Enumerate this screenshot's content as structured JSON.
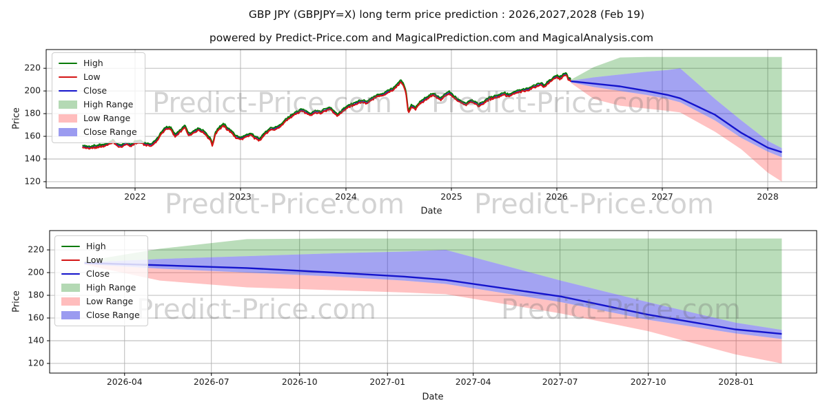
{
  "figure": {
    "title": "GBP JPY (GBPJPY=X) long term price prediction : 2026,2027,2028 (Feb 19)",
    "subtitle": "powered by Predict-Price.com and MagicalPrediction.com and MagicalAnalysis.com",
    "watermark_text": "Predict-Price.com"
  },
  "axis_labels": {
    "x": "Date",
    "y": "Price"
  },
  "colors": {
    "high": "#077a07",
    "low": "#d41414",
    "close": "#1414cc",
    "high_range_fill": "rgba(0,128,0,0.27)",
    "low_range_fill": "rgba(255,30,30,0.27)",
    "close_range_fill": "rgba(45,45,225,0.44)",
    "high_range_swatch": "#b4d9b4",
    "low_range_swatch": "#ffbdbd",
    "close_range_swatch": "#9b9bf0",
    "grid": "#b0b0b0",
    "spine": "#000000",
    "text": "#1a1a1a",
    "watermark_fill": "rgba(110,110,110,0.30)"
  },
  "legend": {
    "items": [
      {
        "label": "High",
        "type": "line",
        "color": "high"
      },
      {
        "label": "Low",
        "type": "line",
        "color": "low"
      },
      {
        "label": "Close",
        "type": "line",
        "color": "close"
      },
      {
        "label": "High Range",
        "type": "patch",
        "color": "high_range_swatch"
      },
      {
        "label": "Low Range",
        "type": "patch",
        "color": "low_range_swatch"
      },
      {
        "label": "Close Range",
        "type": "patch",
        "color": "close_range_swatch"
      }
    ]
  },
  "chart_data": [
    {
      "type": "line",
      "name": "price-history-and-forecast",
      "xlabel": "Date",
      "ylabel": "Price",
      "grid": true,
      "legend_position": "upper left",
      "xlim": [
        2021.157,
        2028.464
      ],
      "ylim": [
        114.5,
        236.5
      ],
      "xticks": [
        {
          "v": 2022,
          "label": "2022"
        },
        {
          "v": 2023,
          "label": "2023"
        },
        {
          "v": 2024,
          "label": "2024"
        },
        {
          "v": 2025,
          "label": "2025"
        },
        {
          "v": 2026,
          "label": "2026"
        },
        {
          "v": 2027,
          "label": "2027"
        },
        {
          "v": 2028,
          "label": "2028"
        }
      ],
      "yticks": [
        {
          "v": 120,
          "label": "120"
        },
        {
          "v": 140,
          "label": "140"
        },
        {
          "v": 160,
          "label": "160"
        },
        {
          "v": 180,
          "label": "180"
        },
        {
          "v": 200,
          "label": "200"
        },
        {
          "v": 220,
          "label": "220"
        }
      ],
      "series": {
        "history_close_anchors": [
          [
            2021.5,
            151.5
          ],
          [
            2021.55,
            150.0
          ],
          [
            2021.62,
            150.8
          ],
          [
            2021.7,
            152.0
          ],
          [
            2021.75,
            153.5
          ],
          [
            2021.79,
            156.0
          ],
          [
            2021.83,
            152.5
          ],
          [
            2021.87,
            151.5
          ],
          [
            2021.92,
            153.8
          ],
          [
            2021.96,
            152.0
          ],
          [
            2022.0,
            154.5
          ],
          [
            2022.05,
            155.5
          ],
          [
            2022.1,
            153.0
          ],
          [
            2022.16,
            152.5
          ],
          [
            2022.21,
            157.5
          ],
          [
            2022.26,
            164.0
          ],
          [
            2022.3,
            168.0
          ],
          [
            2022.34,
            166.5
          ],
          [
            2022.38,
            160.5
          ],
          [
            2022.43,
            164.5
          ],
          [
            2022.47,
            169.0
          ],
          [
            2022.51,
            161.5
          ],
          [
            2022.55,
            163.5
          ],
          [
            2022.6,
            166.5
          ],
          [
            2022.65,
            164.0
          ],
          [
            2022.69,
            160.0
          ],
          [
            2022.72,
            157.0
          ],
          [
            2022.735,
            151.5
          ],
          [
            2022.76,
            163.0
          ],
          [
            2022.8,
            167.5
          ],
          [
            2022.84,
            170.0
          ],
          [
            2022.88,
            166.5
          ],
          [
            2022.92,
            163.5
          ],
          [
            2022.96,
            159.5
          ],
          [
            2023.0,
            158.0
          ],
          [
            2023.05,
            160.0
          ],
          [
            2023.1,
            162.0
          ],
          [
            2023.14,
            159.0
          ],
          [
            2023.18,
            157.5
          ],
          [
            2023.23,
            162.5
          ],
          [
            2023.28,
            166.0
          ],
          [
            2023.33,
            167.0
          ],
          [
            2023.38,
            169.5
          ],
          [
            2023.43,
            174.0
          ],
          [
            2023.48,
            178.0
          ],
          [
            2023.53,
            181.0
          ],
          [
            2023.58,
            183.5
          ],
          [
            2023.62,
            181.5
          ],
          [
            2023.66,
            179.5
          ],
          [
            2023.71,
            182.0
          ],
          [
            2023.76,
            181.0
          ],
          [
            2023.8,
            183.0
          ],
          [
            2023.85,
            185.0
          ],
          [
            2023.88,
            182.0
          ],
          [
            2023.92,
            178.5
          ],
          [
            2023.96,
            182.0
          ],
          [
            2024.0,
            185.5
          ],
          [
            2024.05,
            187.5
          ],
          [
            2024.1,
            189.5
          ],
          [
            2024.15,
            191.0
          ],
          [
            2024.2,
            190.0
          ],
          [
            2024.25,
            193.5
          ],
          [
            2024.3,
            196.0
          ],
          [
            2024.35,
            197.0
          ],
          [
            2024.4,
            199.5
          ],
          [
            2024.45,
            201.5
          ],
          [
            2024.49,
            205.5
          ],
          [
            2024.52,
            208.5
          ],
          [
            2024.55,
            205.0
          ],
          [
            2024.575,
            196.0
          ],
          [
            2024.59,
            181.5
          ],
          [
            2024.62,
            187.0
          ],
          [
            2024.66,
            184.5
          ],
          [
            2024.7,
            189.5
          ],
          [
            2024.74,
            192.0
          ],
          [
            2024.78,
            194.5
          ],
          [
            2024.82,
            197.0
          ],
          [
            2024.86,
            195.5
          ],
          [
            2024.9,
            192.5
          ],
          [
            2024.94,
            196.5
          ],
          [
            2024.98,
            198.5
          ],
          [
            2025.02,
            195.0
          ],
          [
            2025.06,
            192.0
          ],
          [
            2025.1,
            190.0
          ],
          [
            2025.14,
            188.5
          ],
          [
            2025.18,
            191.5
          ],
          [
            2025.22,
            190.0
          ],
          [
            2025.26,
            187.5
          ],
          [
            2025.3,
            189.5
          ],
          [
            2025.35,
            193.0
          ],
          [
            2025.4,
            194.5
          ],
          [
            2025.45,
            196.0
          ],
          [
            2025.5,
            197.5
          ],
          [
            2025.55,
            196.0
          ],
          [
            2025.6,
            198.5
          ],
          [
            2025.65,
            200.0
          ],
          [
            2025.7,
            201.0
          ],
          [
            2025.75,
            202.5
          ],
          [
            2025.8,
            204.5
          ],
          [
            2025.85,
            206.5
          ],
          [
            2025.88,
            204.0
          ],
          [
            2025.92,
            208.0
          ],
          [
            2025.96,
            210.5
          ],
          [
            2026.0,
            213.0
          ],
          [
            2026.03,
            211.5
          ],
          [
            2026.06,
            214.0
          ],
          [
            2026.09,
            215.0
          ],
          [
            2026.11,
            211.0
          ],
          [
            2026.134,
            209.5
          ]
        ]
      },
      "forecast": {
        "t": [
          2026.134,
          2026.35,
          2026.6,
          2026.85,
          2027.05,
          2027.17,
          2027.5,
          2027.75,
          2028.0,
          2028.134
        ],
        "close": [
          208.5,
          206.5,
          204.0,
          200.0,
          196.5,
          193.5,
          179.0,
          163.0,
          150.0,
          146.0
        ],
        "close_hi": [
          209.0,
          212.0,
          214.5,
          217.0,
          218.5,
          220.0,
          193.0,
          174.0,
          156.0,
          149.5
        ],
        "close_lo": [
          207.5,
          203.5,
          200.0,
          196.5,
          193.0,
          190.0,
          174.0,
          158.5,
          146.5,
          141.5
        ],
        "high_top": [
          210.0,
          221.0,
          229.5,
          230.0,
          230.0,
          230.0,
          230.0,
          230.0,
          230.0,
          230.0
        ],
        "low_bot": [
          207.0,
          193.0,
          187.0,
          184.5,
          182.5,
          181.0,
          164.0,
          148.5,
          128.0,
          120.0
        ]
      }
    },
    {
      "type": "area",
      "name": "forecast-detail",
      "xlabel": "Date",
      "ylabel": "Price",
      "grid": true,
      "legend_position": "upper left",
      "xlim": [
        2026.034,
        2028.234
      ],
      "ylim": [
        111.5,
        237.0
      ],
      "xticks": [
        {
          "v": 2026.249,
          "label": "2026-04"
        },
        {
          "v": 2026.498,
          "label": "2026-07"
        },
        {
          "v": 2026.751,
          "label": "2026-10"
        },
        {
          "v": 2027.003,
          "label": "2027-01"
        },
        {
          "v": 2027.249,
          "label": "2027-04"
        },
        {
          "v": 2027.498,
          "label": "2027-07"
        },
        {
          "v": 2027.751,
          "label": "2027-10"
        },
        {
          "v": 2028.003,
          "label": "2028-01"
        }
      ],
      "yticks": [
        {
          "v": 120,
          "label": "120"
        },
        {
          "v": 140,
          "label": "140"
        },
        {
          "v": 160,
          "label": "160"
        },
        {
          "v": 180,
          "label": "180"
        },
        {
          "v": 200,
          "label": "200"
        },
        {
          "v": 220,
          "label": "220"
        }
      ],
      "forecast": {
        "t": [
          2026.134,
          2026.35,
          2026.6,
          2026.85,
          2027.05,
          2027.17,
          2027.5,
          2027.75,
          2028.0,
          2028.134
        ],
        "close": [
          208.5,
          206.5,
          204.0,
          200.0,
          196.5,
          193.5,
          179.0,
          163.0,
          150.0,
          146.0
        ],
        "close_hi": [
          209.0,
          212.0,
          214.5,
          217.0,
          218.5,
          220.0,
          193.0,
          174.0,
          156.0,
          149.5
        ],
        "close_lo": [
          207.5,
          203.5,
          200.0,
          196.5,
          193.0,
          190.0,
          174.0,
          158.5,
          146.5,
          141.5
        ],
        "high_top": [
          210.0,
          221.0,
          229.5,
          230.0,
          230.0,
          230.0,
          230.0,
          230.0,
          230.0,
          230.0
        ],
        "low_bot": [
          207.0,
          193.0,
          187.0,
          184.5,
          182.5,
          181.0,
          164.0,
          148.5,
          128.0,
          120.0
        ]
      }
    }
  ]
}
